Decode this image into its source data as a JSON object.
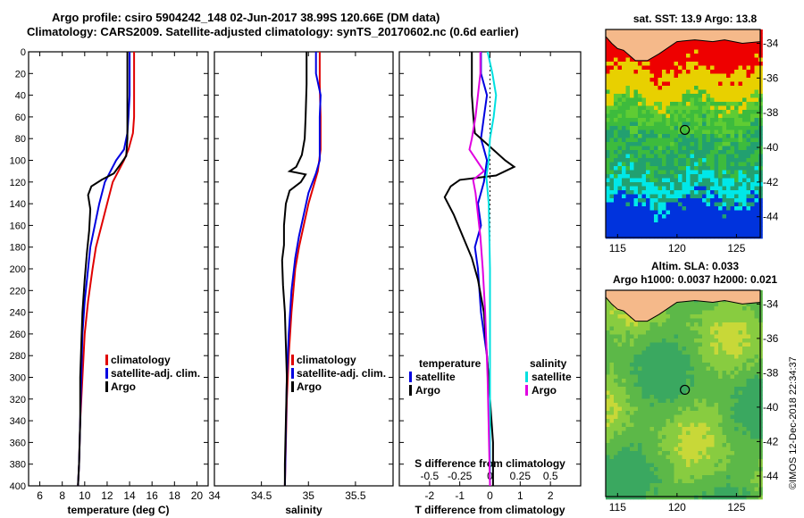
{
  "title": {
    "line1": "Argo profile: csiro 5904242_148 02-Jun-2017 38.99S 120.66E (DM data)",
    "line2": "Climatology: CARS2009. Satellite-adjusted climatology: synTS_20170602.nc (0.6d earlier)"
  },
  "depth_ticks": [
    "0",
    "20",
    "40",
    "60",
    "80",
    "100",
    "120",
    "140",
    "160",
    "180",
    "200",
    "220",
    "240",
    "260",
    "280",
    "300",
    "320",
    "340",
    "360",
    "380",
    "400"
  ],
  "chart_data": [
    {
      "type": "line",
      "id": "temperature",
      "xlabel": "temperature (deg C)",
      "ylabel": "depth",
      "xlim": [
        5,
        21
      ],
      "ylim": [
        400,
        0
      ],
      "xticks": [
        "6",
        "8",
        "10",
        "12",
        "14",
        "16",
        "18",
        "20"
      ],
      "xtick_values": [
        6,
        8,
        10,
        12,
        14,
        16,
        18,
        20
      ],
      "legend": [
        {
          "label": "climatology",
          "color": "#e00000"
        },
        {
          "label": "satellite-adj. clim.",
          "color": "#0000e0"
        },
        {
          "label": "Argo",
          "color": "#000000"
        }
      ],
      "series": [
        {
          "name": "climatology",
          "color": "#e00000",
          "points": [
            [
              14.4,
              0
            ],
            [
              14.4,
              20
            ],
            [
              14.4,
              40
            ],
            [
              14.4,
              60
            ],
            [
              14.3,
              75
            ],
            [
              13.9,
              90
            ],
            [
              13.5,
              100
            ],
            [
              13.0,
              110
            ],
            [
              12.5,
              120
            ],
            [
              12.0,
              140
            ],
            [
              11.5,
              160
            ],
            [
              11.0,
              180
            ],
            [
              10.7,
              200
            ],
            [
              10.3,
              230
            ],
            [
              10.0,
              260
            ],
            [
              9.8,
              300
            ],
            [
              9.6,
              340
            ],
            [
              9.5,
              380
            ],
            [
              9.4,
              400
            ]
          ]
        },
        {
          "name": "satellite-adj. clim.",
          "color": "#0000e0",
          "points": [
            [
              14.0,
              0
            ],
            [
              14.0,
              20
            ],
            [
              14.0,
              40
            ],
            [
              13.9,
              60
            ],
            [
              13.8,
              75
            ],
            [
              13.5,
              90
            ],
            [
              12.8,
              100
            ],
            [
              12.3,
              110
            ],
            [
              11.8,
              120
            ],
            [
              11.3,
              140
            ],
            [
              10.9,
              160
            ],
            [
              10.5,
              180
            ],
            [
              10.3,
              200
            ],
            [
              10.0,
              230
            ],
            [
              9.8,
              260
            ],
            [
              9.7,
              300
            ],
            [
              9.6,
              340
            ],
            [
              9.5,
              380
            ],
            [
              9.4,
              400
            ]
          ]
        },
        {
          "name": "Argo",
          "color": "#000000",
          "points": [
            [
              13.8,
              0
            ],
            [
              13.8,
              20
            ],
            [
              13.8,
              40
            ],
            [
              13.8,
              60
            ],
            [
              13.8,
              80
            ],
            [
              13.7,
              96
            ],
            [
              13.3,
              102
            ],
            [
              12.6,
              112
            ],
            [
              11.5,
              118
            ],
            [
              10.6,
              124
            ],
            [
              10.3,
              132
            ],
            [
              10.5,
              145
            ],
            [
              10.4,
              165
            ],
            [
              10.2,
              185
            ],
            [
              10.0,
              210
            ],
            [
              9.8,
              240
            ],
            [
              9.7,
              270
            ],
            [
              9.6,
              300
            ],
            [
              9.6,
              340
            ],
            [
              9.5,
              380
            ],
            [
              9.4,
              400
            ]
          ]
        }
      ]
    },
    {
      "type": "line",
      "id": "salinity",
      "xlabel": "salinity",
      "ylabel": "depth",
      "xlim": [
        34,
        35.9
      ],
      "ylim": [
        400,
        0
      ],
      "xticks": [
        "34",
        "34.5",
        "35",
        "35.5"
      ],
      "xtick_values": [
        34,
        34.5,
        35,
        35.5
      ],
      "legend": [
        {
          "label": "climatology",
          "color": "#e00000"
        },
        {
          "label": "satellite-adj. clim.",
          "color": "#0000e0"
        },
        {
          "label": "Argo",
          "color": "#000000"
        }
      ],
      "series": [
        {
          "name": "climatology",
          "color": "#e00000",
          "points": [
            [
              35.12,
              0
            ],
            [
              35.12,
              30
            ],
            [
              35.13,
              60
            ],
            [
              35.13,
              90
            ],
            [
              35.1,
              110
            ],
            [
              35.0,
              140
            ],
            [
              34.95,
              160
            ],
            [
              34.9,
              180
            ],
            [
              34.86,
              200
            ],
            [
              34.82,
              240
            ],
            [
              34.79,
              280
            ],
            [
              34.77,
              320
            ],
            [
              34.76,
              360
            ],
            [
              34.75,
              400
            ]
          ]
        },
        {
          "name": "satellite-adj. clim.",
          "color": "#0000e0",
          "points": [
            [
              35.08,
              0
            ],
            [
              35.08,
              20
            ],
            [
              35.13,
              40
            ],
            [
              35.12,
              60
            ],
            [
              35.12,
              80
            ],
            [
              35.12,
              100
            ],
            [
              35.08,
              112
            ],
            [
              35.0,
              130
            ],
            [
              34.95,
              150
            ],
            [
              34.9,
              170
            ],
            [
              34.86,
              190
            ],
            [
              34.82,
              220
            ],
            [
              34.79,
              260
            ],
            [
              34.77,
              300
            ],
            [
              34.76,
              350
            ],
            [
              34.75,
              400
            ]
          ]
        },
        {
          "name": "Argo",
          "color": "#000000",
          "points": [
            [
              34.98,
              0
            ],
            [
              34.98,
              30
            ],
            [
              34.97,
              60
            ],
            [
              34.96,
              80
            ],
            [
              34.93,
              95
            ],
            [
              34.87,
              106
            ],
            [
              34.8,
              110
            ],
            [
              34.97,
              113
            ],
            [
              34.92,
              120
            ],
            [
              34.8,
              128
            ],
            [
              34.76,
              140
            ],
            [
              34.74,
              160
            ],
            [
              34.74,
              178
            ],
            [
              34.72,
              192
            ],
            [
              34.73,
              215
            ],
            [
              34.75,
              240
            ],
            [
              34.76,
              270
            ],
            [
              34.77,
              300
            ],
            [
              34.76,
              340
            ],
            [
              34.75,
              380
            ],
            [
              34.75,
              400
            ]
          ]
        }
      ]
    },
    {
      "type": "line",
      "id": "difference",
      "xlabel": "T difference from climatology",
      "top_xlabel": "S difference from climatology",
      "xlim": [
        -3,
        3
      ],
      "s_xlim": [
        -0.75,
        0.75
      ],
      "ylim": [
        400,
        0
      ],
      "xticks": [
        "-2",
        "-1",
        "0",
        "1",
        "2"
      ],
      "xtick_values": [
        -2,
        -1,
        0,
        1,
        2
      ],
      "top_xticks": [
        "-0.5",
        "-0.25",
        "0",
        "0.25",
        "0.5"
      ],
      "top_xtick_values": [
        -0.5,
        -0.25,
        0,
        0.25,
        0.5
      ],
      "legend": [
        {
          "group": "temperature",
          "label": "satellite",
          "color": "#0000e0"
        },
        {
          "group": "temperature",
          "label": "Argo",
          "color": "#000000"
        },
        {
          "group": "salinity",
          "label": "satellite",
          "color": "#00e0e0"
        },
        {
          "group": "salinity",
          "label": "Argo",
          "color": "#e000e0"
        }
      ],
      "legend_headers": [
        "temperature",
        "salinity"
      ],
      "series": [
        {
          "name": "T satellite",
          "color": "#0000e0",
          "units": "T",
          "points": [
            [
              -0.3,
              0
            ],
            [
              -0.3,
              20
            ],
            [
              -0.1,
              40
            ],
            [
              -0.2,
              60
            ],
            [
              -0.3,
              80
            ],
            [
              -0.1,
              100
            ],
            [
              -0.2,
              120
            ],
            [
              -0.4,
              140
            ],
            [
              -0.3,
              160
            ],
            [
              -0.5,
              180
            ],
            [
              -0.4,
              200
            ],
            [
              -0.3,
              240
            ],
            [
              -0.1,
              280
            ],
            [
              0,
              320
            ],
            [
              0,
              360
            ],
            [
              0,
              400
            ]
          ]
        },
        {
          "name": "T Argo",
          "color": "#000000",
          "units": "T",
          "points": [
            [
              -0.6,
              0
            ],
            [
              -0.6,
              20
            ],
            [
              -0.6,
              40
            ],
            [
              -0.55,
              60
            ],
            [
              -0.5,
              75
            ],
            [
              -0.1,
              85
            ],
            [
              0.5,
              100
            ],
            [
              0.8,
              106
            ],
            [
              0.2,
              114
            ],
            [
              -1.0,
              118
            ],
            [
              -1.3,
              124
            ],
            [
              -1.5,
              134
            ],
            [
              -1.2,
              150
            ],
            [
              -0.9,
              170
            ],
            [
              -0.6,
              190
            ],
            [
              -0.4,
              210
            ],
            [
              -0.2,
              240
            ],
            [
              -0.1,
              280
            ],
            [
              0,
              320
            ],
            [
              0.1,
              360
            ],
            [
              0.1,
              400
            ]
          ]
        },
        {
          "name": "S satellite",
          "color": "#00e0e0",
          "units": "S",
          "points": [
            [
              -0.02,
              0
            ],
            [
              0.02,
              20
            ],
            [
              0.05,
              40
            ],
            [
              0.03,
              60
            ],
            [
              0.0,
              80
            ],
            [
              -0.01,
              100
            ],
            [
              -0.03,
              115
            ],
            [
              -0.01,
              140
            ],
            [
              0,
              200
            ],
            [
              0,
              400
            ]
          ]
        },
        {
          "name": "S Argo",
          "color": "#e000e0",
          "units": "S",
          "points": [
            [
              -0.08,
              0
            ],
            [
              -0.08,
              20
            ],
            [
              -0.1,
              40
            ],
            [
              -0.12,
              60
            ],
            [
              -0.15,
              80
            ],
            [
              -0.17,
              90
            ],
            [
              -0.05,
              110
            ],
            [
              -0.14,
              118
            ],
            [
              -0.12,
              130
            ],
            [
              -0.1,
              150
            ],
            [
              -0.08,
              170
            ],
            [
              -0.06,
              200
            ],
            [
              -0.04,
              240
            ],
            [
              -0.02,
              300
            ],
            [
              0,
              400
            ]
          ]
        }
      ]
    },
    {
      "type": "heatmap",
      "id": "sst_map",
      "title": "sat. SST: 13.9 Argo: 13.8",
      "xticks": [
        "115",
        "120",
        "125"
      ],
      "yticks": [
        "-34",
        "-36",
        "-38",
        "-40",
        "-42",
        "-44"
      ],
      "xtick_values": [
        115,
        120,
        125
      ],
      "ytick_values": [
        -34,
        -36,
        -38,
        -40,
        -42,
        -44
      ],
      "xlim": [
        114,
        127
      ],
      "ylim": [
        -45.2,
        -33.2
      ],
      "marker": {
        "lon": 120.66,
        "lat": -38.99
      }
    },
    {
      "type": "heatmap",
      "id": "sla_map",
      "title_line1": "Altim. SLA: 0.033",
      "title_line2": "Argo h1000: 0.0037 h2000: 0.021",
      "xticks": [
        "115",
        "120",
        "125"
      ],
      "yticks": [
        "-34",
        "-36",
        "-38",
        "-40",
        "-42",
        "-44"
      ],
      "xtick_values": [
        115,
        120,
        125
      ],
      "ytick_values": [
        -34,
        -36,
        -38,
        -40,
        -42,
        -44
      ],
      "xlim": [
        114,
        127
      ],
      "ylim": [
        -45.2,
        -33.2
      ],
      "marker": {
        "lon": 120.66,
        "lat": -38.99
      }
    }
  ],
  "footer": {
    "stamp": "©IMOS 12-Dec-2018 22:34:37"
  }
}
